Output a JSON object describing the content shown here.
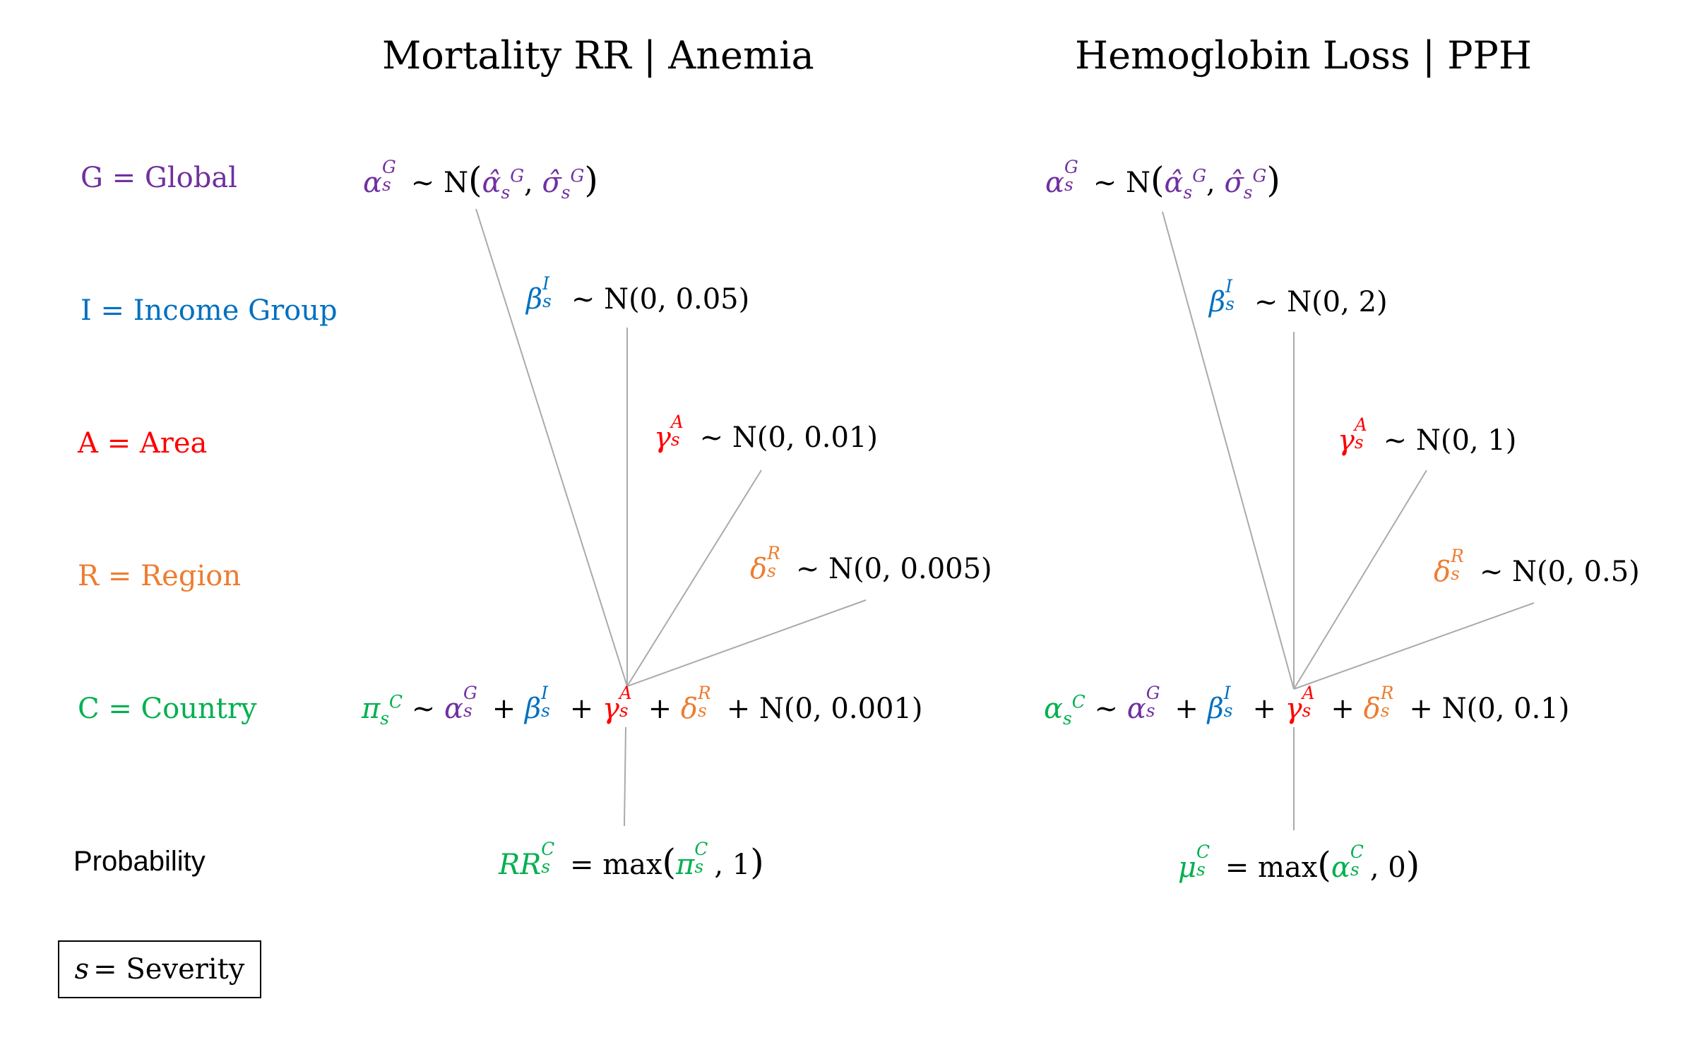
{
  "titles": {
    "left": "Mortality RR | Anemia",
    "right": "Hemoglobin Loss | PPH"
  },
  "levels": [
    {
      "key": "G",
      "label": "G = Global",
      "color": "#7030a0"
    },
    {
      "key": "I",
      "label": "I = Income Group",
      "color": "#0070c0"
    },
    {
      "key": "A",
      "label": "A = Area",
      "color": "#ff0000"
    },
    {
      "key": "R",
      "label": "R = Region",
      "color": "#ed7d31"
    },
    {
      "key": "C",
      "label": "C = Country",
      "color": "#00b050"
    },
    {
      "key": "P",
      "label": "Probability",
      "color": "#000000"
    }
  ],
  "legend": {
    "symbol": "s",
    "text": "= Severity"
  },
  "left_model": {
    "global_prior": "N",
    "income_prior": "N(0, 0.05)",
    "area_prior": "N(0, 0.01)",
    "region_prior": "N(0, 0.005)",
    "country_param": "π",
    "country_noise": "N(0, 0.001)",
    "output_name": "RR",
    "output_fn": "max",
    "output_floor": "1"
  },
  "right_model": {
    "global_prior": "N",
    "income_prior": "N(0, 2)",
    "area_prior": "N(0, 1)",
    "region_prior": "N(0, 0.5)",
    "country_param": "α",
    "country_noise": "N(0, 0.1)",
    "output_name": "μ",
    "output_fn": "max",
    "output_floor": "0"
  },
  "colors": {
    "global": "#7030a0",
    "income": "#0070c0",
    "area": "#ff0000",
    "region": "#ed7d31",
    "country": "#00b050",
    "connector": "#aaaaaa"
  }
}
